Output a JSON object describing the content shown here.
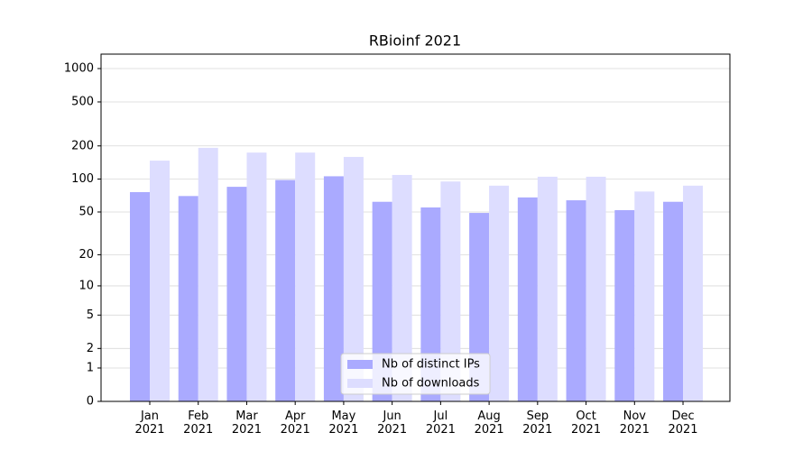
{
  "chart_data": {
    "type": "bar",
    "title": "RBioinf 2021",
    "categories": [
      "Jan\n2021",
      "Feb\n2021",
      "Mar\n2021",
      "Apr\n2021",
      "May\n2021",
      "Jun\n2021",
      "Jul\n2021",
      "Aug\n2021",
      "Sep\n2021",
      "Oct\n2021",
      "Nov\n2021",
      "Dec\n2021"
    ],
    "series": [
      {
        "name": "Nb of distinct IPs",
        "color": "#aaaaff",
        "values": [
          76,
          70,
          85,
          98,
          106,
          62,
          55,
          49,
          68,
          64,
          52,
          62
        ]
      },
      {
        "name": "Nb of downloads",
        "color": "#ddddff",
        "values": [
          147,
          192,
          174,
          174,
          159,
          109,
          95,
          87,
          105,
          105,
          77,
          87
        ]
      }
    ],
    "yscale": "log1p",
    "ylim": [
      0,
      1350
    ],
    "yticks": [
      0,
      1,
      2,
      5,
      10,
      20,
      50,
      100,
      200,
      500,
      1000
    ],
    "grid": true,
    "legend": "lower center"
  }
}
